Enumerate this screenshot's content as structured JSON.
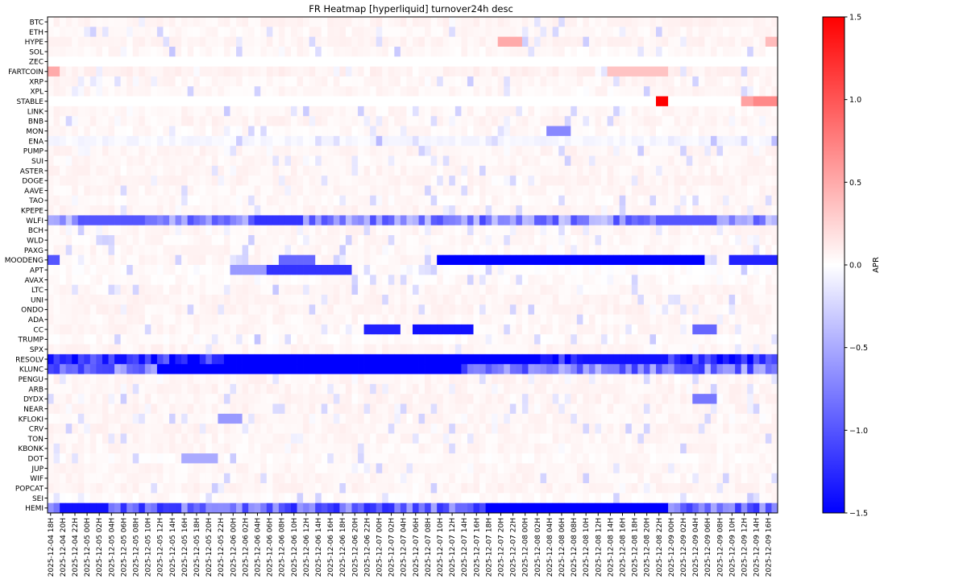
{
  "chart_data": {
    "type": "heatmap",
    "title": "FR Heatmap [hyperliquid] turnover24h desc",
    "xlabel": "",
    "ylabel": "",
    "colorbar": {
      "label": "APR",
      "vmin": -1.5,
      "vmax": 1.5,
      "ticks": [
        1.5,
        1.0,
        0.5,
        0.0,
        -0.5,
        -1.0,
        -1.5
      ],
      "tick_labels": [
        "1.5",
        "1.0",
        "0.5",
        "0.0",
        "−0.5",
        "−1.0",
        "−1.5"
      ],
      "colormap": "bwr",
      "low_color": "#0000ff",
      "mid_color": "#ffffff",
      "high_color": "#ff0000"
    },
    "rows": [
      "BTC",
      "ETH",
      "HYPE",
      "SOL",
      "ZEC",
      "FARTCOIN",
      "XRP",
      "XPL",
      "STABLE",
      "LINK",
      "BNB",
      "MON",
      "ENA",
      "PUMP",
      "SUI",
      "ASTER",
      "DOGE",
      "AAVE",
      "TAO",
      "KPEPE",
      "WLFI",
      "BCH",
      "WLD",
      "PAXG",
      "MOODENG",
      "APT",
      "AVAX",
      "LTC",
      "UNI",
      "ONDO",
      "ADA",
      "CC",
      "TRUMP",
      "SPX",
      "RESOLV",
      "KLUNC",
      "PENGU",
      "ARB",
      "DYDX",
      "NEAR",
      "KFLOKI",
      "CRV",
      "TON",
      "KBONK",
      "DOT",
      "JUP",
      "WIF",
      "POPCAT",
      "SEI",
      "HEMI"
    ],
    "x_labels": [
      "2025-12-04 18H",
      "2025-12-04 20H",
      "2025-12-04 22H",
      "2025-12-05 00H",
      "2025-12-05 02H",
      "2025-12-05 04H",
      "2025-12-05 06H",
      "2025-12-05 08H",
      "2025-12-05 10H",
      "2025-12-05 12H",
      "2025-12-05 14H",
      "2025-12-05 16H",
      "2025-12-05 18H",
      "2025-12-05 20H",
      "2025-12-05 22H",
      "2025-12-06 00H",
      "2025-12-06 02H",
      "2025-12-06 04H",
      "2025-12-06 06H",
      "2025-12-06 08H",
      "2025-12-06 10H",
      "2025-12-06 12H",
      "2025-12-06 14H",
      "2025-12-06 16H",
      "2025-12-06 18H",
      "2025-12-06 20H",
      "2025-12-06 22H",
      "2025-12-07 00H",
      "2025-12-07 02H",
      "2025-12-07 04H",
      "2025-12-07 06H",
      "2025-12-07 08H",
      "2025-12-07 10H",
      "2025-12-07 12H",
      "2025-12-07 14H",
      "2025-12-07 16H",
      "2025-12-07 18H",
      "2025-12-07 20H",
      "2025-12-07 22H",
      "2025-12-08 00H",
      "2025-12-08 02H",
      "2025-12-08 04H",
      "2025-12-08 06H",
      "2025-12-08 08H",
      "2025-12-08 10H",
      "2025-12-08 12H",
      "2025-12-08 14H",
      "2025-12-08 16H",
      "2025-12-08 18H",
      "2025-12-08 20H",
      "2025-12-08 22H",
      "2025-12-09 00H",
      "2025-12-09 02H",
      "2025-12-09 04H",
      "2025-12-09 06H",
      "2025-12-09 08H",
      "2025-12-09 10H",
      "2025-12-09 12H",
      "2025-12-09 14H",
      "2025-12-09 16H"
    ],
    "base_values": [
      0.06,
      0.05,
      0.06,
      0.04,
      0.0,
      0.08,
      0.05,
      0.05,
      0.0,
      0.05,
      0.06,
      0.04,
      -0.05,
      0.06,
      0.05,
      0.06,
      0.06,
      0.05,
      0.04,
      0.06,
      -0.7,
      0.05,
      0.04,
      0.05,
      0.05,
      0.02,
      0.03,
      0.05,
      0.06,
      0.06,
      0.05,
      0.05,
      0.03,
      0.06,
      -1.3,
      -0.8,
      0.06,
      0.06,
      0.06,
      0.06,
      0.05,
      0.06,
      0.05,
      0.05,
      0.03,
      0.05,
      0.05,
      0.06,
      0.03,
      -0.9
    ],
    "segments": [
      {
        "row": "STABLE",
        "from": "2025-12-08 22H",
        "to": "2025-12-08 22H",
        "value": 1.5
      },
      {
        "row": "STABLE",
        "from": "2025-12-09 12H",
        "to": "2025-12-09 12H",
        "value": 0.55
      },
      {
        "row": "STABLE",
        "from": "2025-12-09 14H",
        "to": "2025-12-09 14H",
        "value": 0.7
      },
      {
        "row": "STABLE",
        "from": "2025-12-09 16H",
        "to": "2025-12-09 16H",
        "value": 0.7
      },
      {
        "row": "HYPE",
        "from": "2025-12-07 20H",
        "to": "2025-12-07 22H",
        "value": 0.5
      },
      {
        "row": "HYPE",
        "from": "2025-12-09 16H",
        "to": "2025-12-09 16H",
        "value": 0.4
      },
      {
        "row": "FARTCOIN",
        "from": "2025-12-04 18H",
        "to": "2025-12-04 18H",
        "value": 0.5
      },
      {
        "row": "FARTCOIN",
        "from": "2025-12-08 14H",
        "to": "2025-12-08 22H",
        "value": 0.35
      },
      {
        "row": "MON",
        "from": "2025-12-08 04H",
        "to": "2025-12-08 06H",
        "value": -0.7
      },
      {
        "row": "WLFI",
        "from": "2025-12-05 00H",
        "to": "2025-12-05 08H",
        "value": -1.0
      },
      {
        "row": "WLFI",
        "from": "2025-12-06 04H",
        "to": "2025-12-06 10H",
        "value": -1.2
      },
      {
        "row": "WLFI",
        "from": "2025-12-08 22H",
        "to": "2025-12-09 06H",
        "value": -1.0
      },
      {
        "row": "MOODENG",
        "from": "2025-12-04 18H",
        "to": "2025-12-04 18H",
        "value": -1.0
      },
      {
        "row": "MOODENG",
        "from": "2025-12-06 08H",
        "to": "2025-12-06 12H",
        "value": -0.9
      },
      {
        "row": "MOODENG",
        "from": "2025-12-07 10H",
        "to": "2025-12-09 04H",
        "value": -1.5
      },
      {
        "row": "MOODENG",
        "from": "2025-12-09 10H",
        "to": "2025-12-09 12H",
        "value": -1.3
      },
      {
        "row": "MOODENG",
        "from": "2025-12-09 14H",
        "to": "2025-12-09 16H",
        "value": -1.3
      },
      {
        "row": "APT",
        "from": "2025-12-06 06H",
        "to": "2025-12-06 18H",
        "value": -1.2
      },
      {
        "row": "APT",
        "from": "2025-12-06 00H",
        "to": "2025-12-06 04H",
        "value": -0.6
      },
      {
        "row": "CC",
        "from": "2025-12-06 22H",
        "to": "2025-12-07 02H",
        "value": -1.3
      },
      {
        "row": "CC",
        "from": "2025-12-07 06H",
        "to": "2025-12-07 14H",
        "value": -1.4
      },
      {
        "row": "CC",
        "from": "2025-12-09 04H",
        "to": "2025-12-09 06H",
        "value": -0.9
      },
      {
        "row": "RESOLV",
        "from": "2025-12-06 00H",
        "to": "2025-12-08 00H",
        "value": -1.5
      },
      {
        "row": "RESOLV",
        "from": "2025-12-08 10H",
        "to": "2025-12-08 22H",
        "value": -1.4
      },
      {
        "row": "KLUNC",
        "from": "2025-12-05 12H",
        "to": "2025-12-07 12H",
        "value": -1.5
      },
      {
        "row": "HEMI",
        "from": "2025-12-04 20H",
        "to": "2025-12-05 02H",
        "value": -1.4
      },
      {
        "row": "HEMI",
        "from": "2025-12-07 18H",
        "to": "2025-12-08 22H",
        "value": -1.5
      },
      {
        "row": "DYDX",
        "from": "2025-12-09 04H",
        "to": "2025-12-09 06H",
        "value": -0.8
      },
      {
        "row": "KFLOKI",
        "from": "2025-12-05 22H",
        "to": "2025-12-06 00H",
        "value": -0.6
      },
      {
        "row": "DOT",
        "from": "2025-12-05 16H",
        "to": "2025-12-05 20H",
        "value": -0.5
      }
    ]
  }
}
